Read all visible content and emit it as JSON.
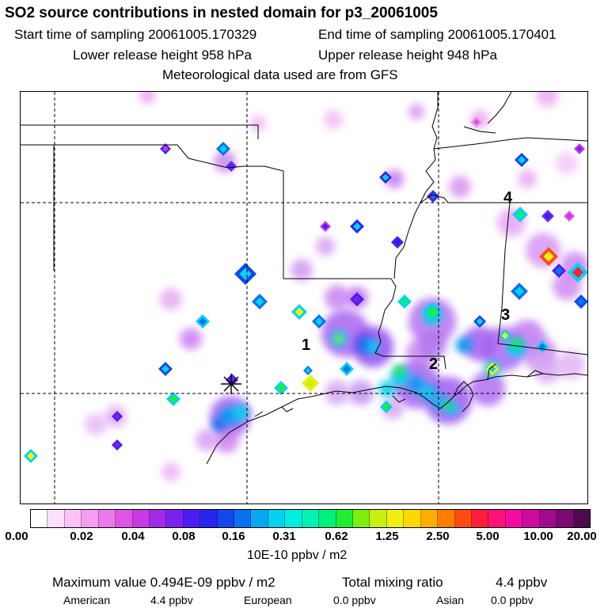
{
  "header": {
    "title": "SO2 source contributions in nested domain for p3_20061005",
    "start_label": "Start time of sampling",
    "start_value": "20061005.170329",
    "end_label": "End time of sampling",
    "end_value": "20061005.170401",
    "lower_label": "Lower release height",
    "lower_value": "958 hPa",
    "upper_label": "Upper release height",
    "upper_value": "948 hPa",
    "met_line": "Meteorological data used are from GFS"
  },
  "map": {
    "markers": [
      "1",
      "2",
      "3",
      "4"
    ],
    "legend_colors": [
      "#ffffff",
      "#fde0fb",
      "#fac2f6",
      "#f59df0",
      "#ec7aea",
      "#dd55e6",
      "#c83ae6",
      "#a12be8",
      "#7a22ef",
      "#4a1ef2",
      "#2826ee",
      "#1446ec",
      "#0a72ee",
      "#08a8f0",
      "#05d2ef",
      "#00efdf",
      "#00f2b3",
      "#00f07a",
      "#20ee2e",
      "#7cee10",
      "#c7f00c",
      "#f0ef10",
      "#ffd800",
      "#ffae00",
      "#ff7d00",
      "#ff4a12",
      "#ff1e3c",
      "#ff1275",
      "#f50aa6",
      "#cc0aa0",
      "#a00a8c",
      "#7a0a70",
      "#4e0a4c"
    ]
  },
  "colorbar": {
    "ticks": [
      "0.00",
      "0.02",
      "0.04",
      "0.08",
      "0.16",
      "0.31",
      "0.62",
      "1.25",
      "2.50",
      "5.00",
      "10.00",
      "20.00"
    ],
    "units": "10E-10 ppbv / m2"
  },
  "summary": {
    "max_label": "Maximum value",
    "max_value": "0.494E-09 ppbv / m2",
    "total_label": "Total mixing ratio",
    "total_value": "4.4 ppbv",
    "american_label": "American",
    "american_value": "4.4 ppbv",
    "european_label": "European",
    "european_value": "0.0 ppbv",
    "asian_label": "Asian",
    "asian_value": "0.0 ppbv"
  }
}
